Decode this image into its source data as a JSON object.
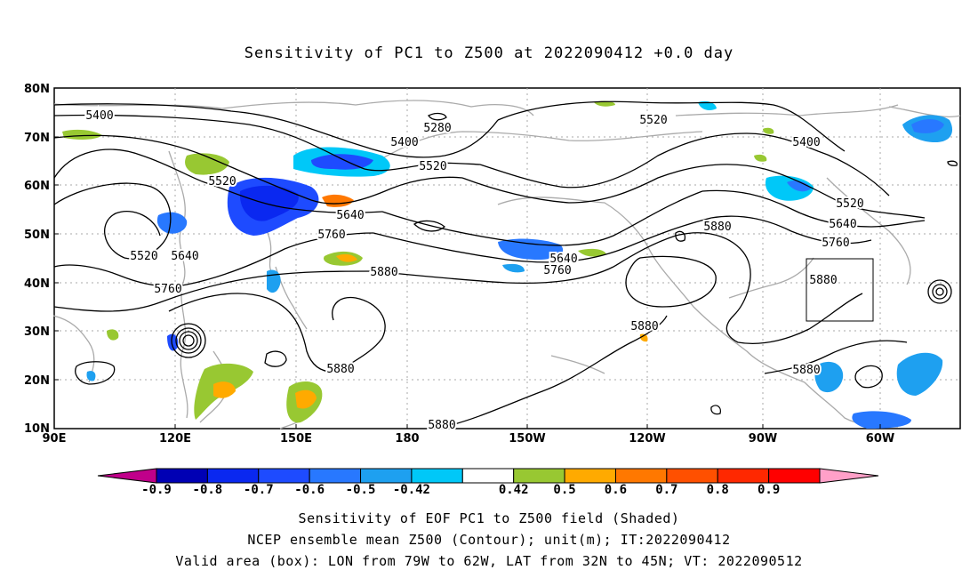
{
  "title": "Sensitivity of PC1 to Z500 at 2022090412 +0.0 day",
  "lat_labels": [
    "80N",
    "70N",
    "60N",
    "50N",
    "40N",
    "30N",
    "20N",
    "10N"
  ],
  "lon_labels": [
    "90E",
    "120E",
    "150E",
    "180",
    "150W",
    "120W",
    "90W",
    "60W"
  ],
  "contour_labels": {
    "c5400a": "5400",
    "c5280": "5280",
    "c5400b": "5400",
    "c5520a": "5520",
    "c5520b": "5520",
    "c5640a": "5640",
    "c5760a": "5760",
    "c5880a": "5880",
    "c5520c": "5520",
    "c5640b": "5640",
    "c5760b": "5760",
    "c5640c": "5640",
    "c5760c": "5760",
    "c5520d": "5520",
    "c5400c": "5400",
    "c5520e": "5520",
    "c5640d": "5640",
    "c5760d": "5760",
    "c5880b": "5880",
    "c5880c": "5880",
    "c5880d": "5880",
    "c5880e": "5880",
    "c5880f": "5880",
    "c5880g": "5880"
  },
  "colorbar": {
    "colors": [
      "#c0008a",
      "#0000b4",
      "#0a28f0",
      "#1e4bff",
      "#2878ff",
      "#1ea0f0",
      "#00c8f8",
      "#ffffff",
      "#98c832",
      "#ffaa00",
      "#ff7800",
      "#ff5000",
      "#ff2800",
      "#ff0000",
      "#ffa0c8"
    ],
    "labels": [
      "-0.9",
      "-0.8",
      "-0.7",
      "-0.6",
      "-0.5",
      "-0.42",
      "0.42",
      "0.5",
      "0.6",
      "0.7",
      "0.8",
      "0.9"
    ]
  },
  "valid_box": {
    "lon": [
      -79,
      -62
    ],
    "lat": [
      32,
      45
    ]
  },
  "captions": {
    "line1": "Sensitivity of EOF PC1 to Z500 field (Shaded)",
    "line2": "NCEP ensemble mean Z500 (Contour); unit(m); IT:2022090412",
    "line3": "Valid area (box): LON from 79W to 62W, LAT from 32N to 45N; VT: 2022090512"
  }
}
